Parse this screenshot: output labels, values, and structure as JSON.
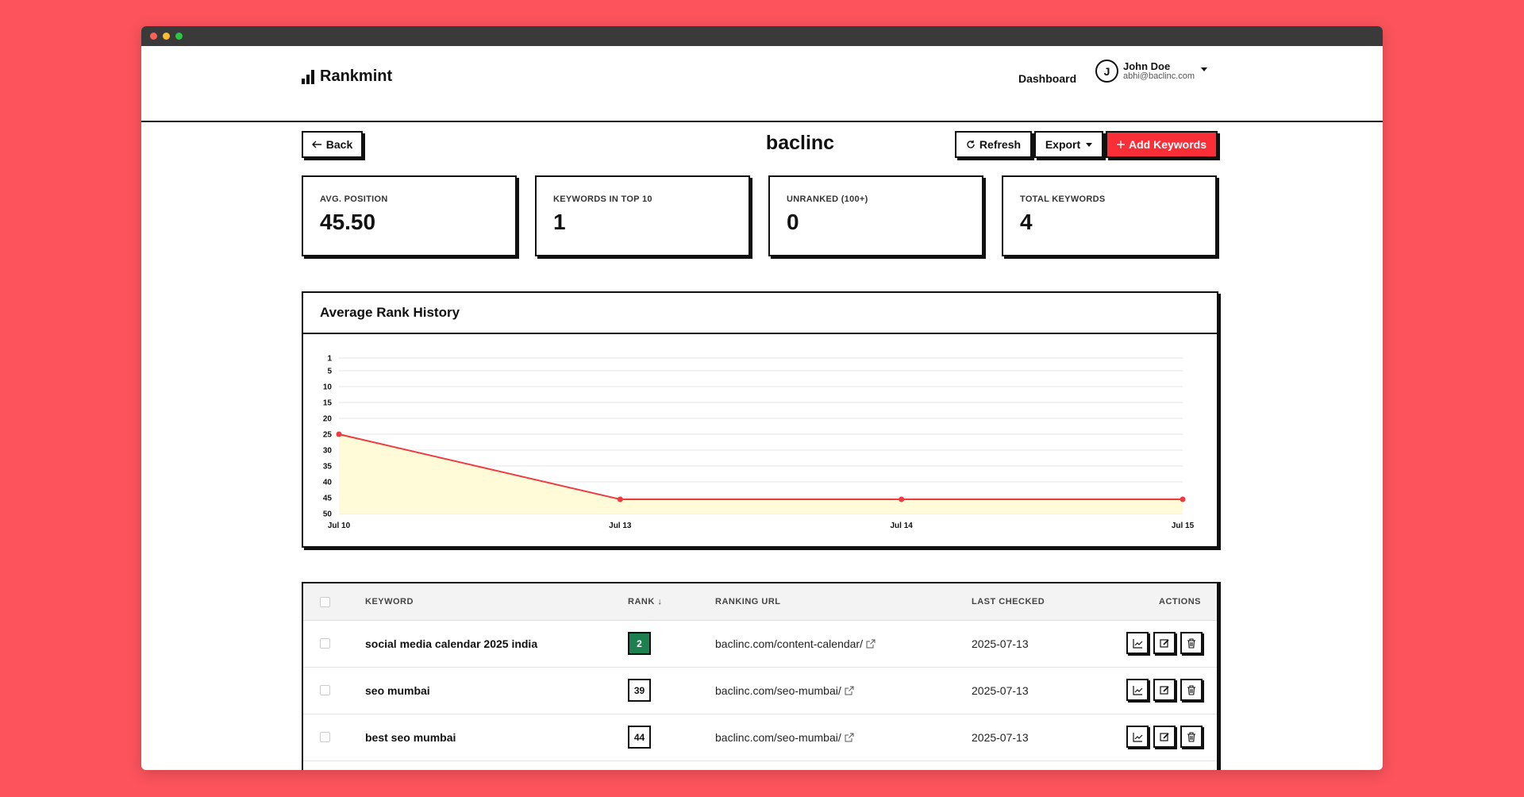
{
  "app": {
    "name": "Rankmint"
  },
  "nav": {
    "dashboard_label": "Dashboard"
  },
  "user": {
    "initial": "J",
    "name": "John Doe",
    "email": "abhi@baclinc.com"
  },
  "page": {
    "title": "baclinc"
  },
  "toolbar": {
    "back_label": "Back",
    "refresh_label": "Refresh",
    "export_label": "Export",
    "add_label": "Add Keywords"
  },
  "stats": [
    {
      "label": "AVG. POSITION",
      "value": "45.50"
    },
    {
      "label": "KEYWORDS IN TOP 10",
      "value": "1"
    },
    {
      "label": "UNRANKED (100+)",
      "value": "0"
    },
    {
      "label": "TOTAL KEYWORDS",
      "value": "4"
    }
  ],
  "chart_data": {
    "type": "area",
    "title": "Average Rank History",
    "x": [
      "Jul 10",
      "Jul 13",
      "Jul 14",
      "Jul 15"
    ],
    "series": [
      {
        "values": [
          25,
          45.5,
          45.5,
          45.5
        ]
      }
    ],
    "yticks": [
      1,
      5,
      10,
      15,
      20,
      25,
      30,
      35,
      40,
      45,
      50
    ],
    "ylim": [
      1,
      50
    ],
    "y_inverted": true,
    "grid": true,
    "line_color": "#f03a3f",
    "fill_color": "#fffbd9"
  },
  "table": {
    "columns": {
      "keyword": "KEYWORD",
      "rank": "RANK",
      "url": "RANKING URL",
      "last_checked": "LAST CHECKED",
      "actions": "ACTIONS"
    },
    "rows": [
      {
        "keyword": "social media calendar 2025 india",
        "rank": "2",
        "rank_color": "#1e7f4f",
        "url": "baclinc.com/content-calendar/",
        "date": "2025-07-13"
      },
      {
        "keyword": "seo mumbai",
        "rank": "39",
        "rank_color": "#ffffff",
        "url": "baclinc.com/seo-mumbai/",
        "date": "2025-07-13"
      },
      {
        "keyword": "best seo mumbai",
        "rank": "44",
        "rank_color": "#ffffff",
        "url": "baclinc.com/seo-mumbai/",
        "date": "2025-07-13"
      }
    ]
  },
  "colors": {
    "background": "#fc535c",
    "accent_red": "#fa2e37",
    "rank_top": "#1e7f4f"
  }
}
